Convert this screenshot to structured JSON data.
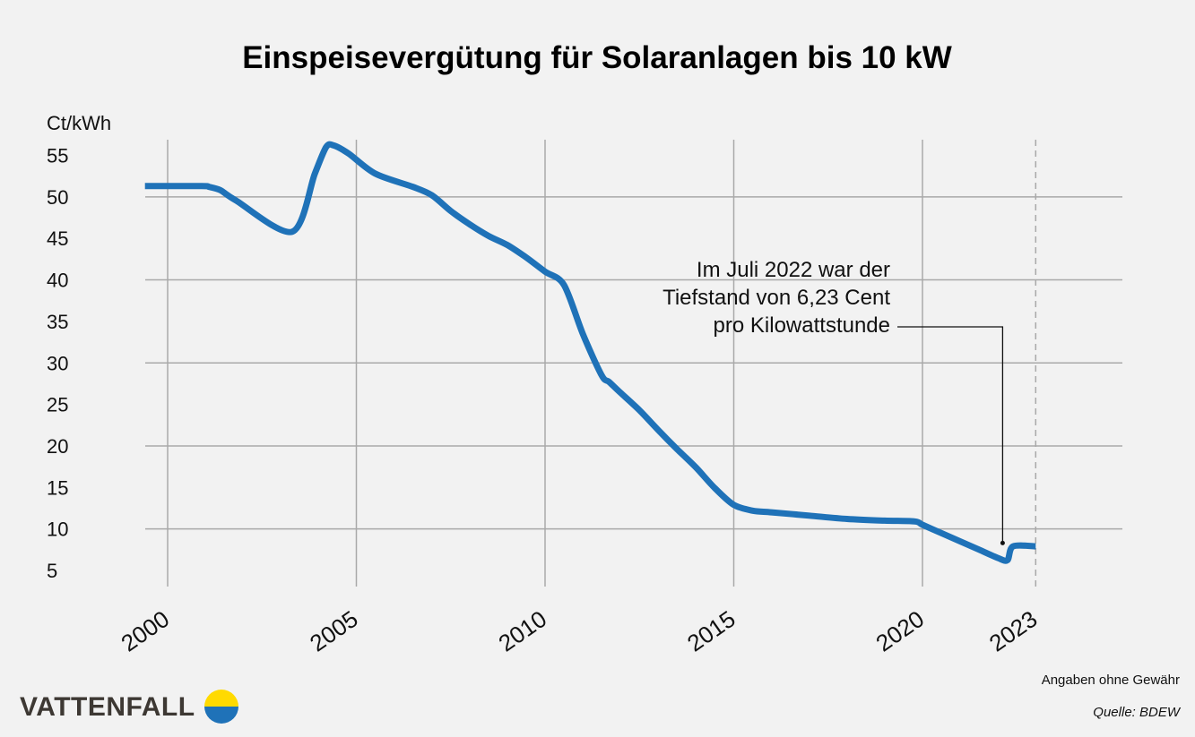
{
  "chart_data": {
    "type": "line",
    "title": "Einspeisevergütung für Solaranlagen bis 10 kW",
    "ylabel": "Ct/kWh",
    "xlabel": "",
    "ylim": [
      2,
      58
    ],
    "xlim": [
      2000,
      2023
    ],
    "y_ticks": [
      5,
      10,
      15,
      20,
      25,
      30,
      35,
      40,
      45,
      50,
      55
    ],
    "x_ticks": [
      2000,
      2005,
      2010,
      2015,
      2020,
      2023
    ],
    "x_tick_labels": [
      "2000",
      "2005",
      "2010",
      "2015",
      "2020",
      "2023"
    ],
    "grid": true,
    "series": [
      {
        "color": "#1f72b8",
        "x": [
          1999.4,
          2000.9,
          2001.1,
          2001.4,
          2001.8,
          2003.3,
          2003.9,
          2004.2,
          2004.4,
          2004.8,
          2005.5,
          2006.5,
          2007.0,
          2007.5,
          2008.0,
          2008.5,
          2009.0,
          2009.5,
          2010.0,
          2010.5,
          2011.0,
          2011.5,
          2011.7,
          2012.0,
          2012.5,
          2013.0,
          2013.5,
          2014.0,
          2014.5,
          2015.0,
          2015.5,
          2016.0,
          2017.0,
          2018.0,
          2019.0,
          2019.8,
          2020.0,
          2020.5,
          2021.0,
          2021.5,
          2022.0,
          2022.25,
          2022.4,
          2023.0
        ],
        "values": [
          51.3,
          51.3,
          51.2,
          50.8,
          49.6,
          45.8,
          52.8,
          56.0,
          56.2,
          55.2,
          52.8,
          51.2,
          50.2,
          48.3,
          46.7,
          45.3,
          44.2,
          42.7,
          41.0,
          39.4,
          33.5,
          28.5,
          27.7,
          26.4,
          24.3,
          21.9,
          19.6,
          17.4,
          14.9,
          12.9,
          12.2,
          12.0,
          11.6,
          11.2,
          11.0,
          10.9,
          10.5,
          9.5,
          8.5,
          7.5,
          6.5,
          6.23,
          7.9,
          7.9
        ]
      }
    ],
    "annotation": {
      "lines": [
        "Im Juli 2022 war der",
        "Tiefstand von 6,23 Cent",
        "pro Kilowattstunde"
      ],
      "x": 2022.1,
      "y": 8.3
    },
    "dashed_x": 2023
  },
  "footer": {
    "disclaimer": "Angaben ohne Gewähr",
    "source": "Quelle: BDEW"
  },
  "logo": {
    "text": "VATTENFALL",
    "colors": {
      "top": "#ffda00",
      "bottom": "#1f72b8"
    }
  }
}
